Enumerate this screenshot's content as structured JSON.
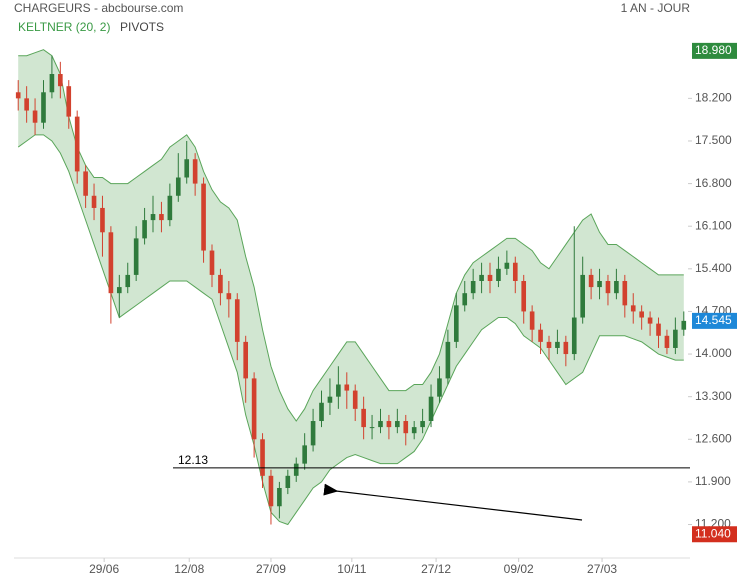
{
  "chart_data": {
    "type": "candlestick",
    "title": "CHARGEURS - abcbourse.com",
    "period": "1 AN - JOUR",
    "indicators": [
      "KELTNER (20, 2)",
      "PIVOTS"
    ],
    "up_color": "#2f7a3c",
    "down_color": "#d2412e",
    "band_color": "#5aa55a",
    "xlim": [
      -0.5,
      79.5
    ],
    "xticks": [
      {
        "value": 10.2,
        "label": "29/06"
      },
      {
        "value": 20.3,
        "label": "12/08"
      },
      {
        "value": 30.0,
        "label": "27/09"
      },
      {
        "value": 39.6,
        "label": "10/11"
      },
      {
        "value": 49.6,
        "label": "27/12"
      },
      {
        "value": 59.4,
        "label": "09/02"
      },
      {
        "value": 69.3,
        "label": "27/03"
      }
    ],
    "ylim": [
      10.65,
      19.52
    ],
    "yticks": [
      {
        "value": 11.2,
        "label": "11.200"
      },
      {
        "value": 11.9,
        "label": "11.900"
      },
      {
        "value": 12.6,
        "label": "12.600"
      },
      {
        "value": 13.3,
        "label": "13.300"
      },
      {
        "value": 14.0,
        "label": "14.000"
      },
      {
        "value": 14.7,
        "label": "14.700"
      },
      {
        "value": 15.4,
        "label": "15.400"
      },
      {
        "value": 16.1,
        "label": "16.100"
      },
      {
        "value": 16.8,
        "label": "16.800"
      },
      {
        "value": 17.5,
        "label": "17.500"
      },
      {
        "value": 18.2,
        "label": "18.200"
      }
    ],
    "open": [
      18.3,
      18.2,
      18.0,
      17.8,
      18.3,
      18.6,
      18.4,
      17.9,
      17.0,
      16.6,
      16.4,
      16.0,
      15.0,
      15.1,
      15.3,
      15.9,
      16.2,
      16.3,
      16.2,
      16.6,
      16.9,
      17.2,
      16.8,
      15.7,
      15.3,
      15.0,
      14.9,
      14.2,
      13.6,
      12.6,
      12.0,
      11.5,
      11.8,
      12.0,
      12.2,
      12.5,
      12.9,
      13.2,
      13.3,
      13.5,
      13.4,
      13.1,
      12.8,
      12.8,
      12.9,
      12.8,
      12.9,
      12.7,
      12.8,
      12.9,
      13.3,
      13.6,
      14.2,
      14.8,
      15.0,
      15.2,
      15.3,
      15.2,
      15.4,
      15.5,
      15.2,
      14.7,
      14.4,
      14.2,
      14.1,
      14.2,
      14.0,
      14.6,
      15.3,
      15.1,
      15.2,
      15.0,
      15.2,
      14.8,
      14.7,
      14.6,
      14.5,
      14.3,
      14.1,
      14.4
    ],
    "high": [
      18.5,
      18.4,
      18.2,
      18.5,
      18.9,
      18.8,
      18.5,
      18.0,
      17.1,
      16.8,
      16.6,
      16.1,
      15.3,
      15.5,
      16.1,
      16.4,
      16.6,
      16.5,
      16.8,
      17.3,
      17.5,
      17.3,
      16.9,
      15.8,
      15.4,
      15.2,
      15.0,
      14.3,
      13.7,
      12.7,
      12.1,
      11.9,
      12.1,
      12.3,
      12.7,
      13.1,
      13.4,
      13.6,
      13.8,
      13.7,
      13.5,
      13.3,
      13.0,
      13.1,
      13.0,
      13.1,
      13.0,
      12.9,
      13.1,
      13.5,
      13.8,
      14.4,
      15.0,
      15.2,
      15.4,
      15.5,
      15.5,
      15.6,
      15.7,
      15.6,
      15.3,
      14.8,
      14.5,
      14.3,
      14.4,
      14.3,
      16.1,
      15.6,
      15.4,
      15.4,
      15.3,
      15.4,
      15.3,
      15.0,
      14.8,
      14.7,
      14.6,
      14.4,
      14.6,
      14.7
    ],
    "low": [
      18.0,
      17.8,
      17.6,
      17.7,
      18.2,
      18.2,
      17.7,
      16.8,
      16.4,
      16.2,
      15.6,
      14.5,
      14.6,
      15.0,
      15.2,
      15.8,
      16.0,
      16.0,
      16.1,
      16.5,
      16.8,
      16.6,
      15.5,
      15.1,
      14.8,
      14.6,
      13.9,
      13.2,
      12.3,
      11.8,
      11.2,
      11.3,
      11.7,
      11.9,
      12.1,
      12.4,
      12.8,
      13.0,
      13.1,
      13.1,
      12.9,
      12.6,
      12.6,
      12.7,
      12.6,
      12.7,
      12.5,
      12.6,
      12.7,
      12.8,
      13.2,
      13.5,
      14.1,
      14.7,
      14.9,
      15.0,
      15.0,
      15.1,
      15.3,
      15.0,
      14.5,
      14.2,
      14.0,
      13.9,
      14.0,
      13.8,
      13.9,
      14.5,
      14.9,
      14.9,
      14.8,
      14.9,
      14.6,
      14.5,
      14.4,
      14.3,
      14.1,
      14.0,
      14.0,
      14.3
    ],
    "close": [
      18.2,
      18.0,
      17.8,
      18.3,
      18.6,
      18.4,
      17.9,
      17.0,
      16.6,
      16.4,
      16.0,
      15.0,
      15.1,
      15.3,
      15.9,
      16.2,
      16.3,
      16.2,
      16.6,
      16.9,
      17.2,
      16.8,
      15.7,
      15.3,
      15.0,
      14.9,
      14.2,
      13.6,
      12.6,
      12.0,
      11.5,
      11.8,
      12.0,
      12.2,
      12.5,
      12.9,
      13.2,
      13.3,
      13.5,
      13.4,
      13.1,
      12.8,
      12.8,
      12.9,
      12.8,
      12.9,
      12.7,
      12.8,
      12.9,
      13.3,
      13.6,
      14.2,
      14.8,
      15.0,
      15.2,
      15.3,
      15.2,
      15.4,
      15.5,
      15.2,
      14.7,
      14.4,
      14.2,
      14.1,
      14.2,
      14.0,
      14.6,
      15.3,
      15.1,
      15.2,
      15.0,
      15.2,
      14.8,
      14.7,
      14.6,
      14.5,
      14.3,
      14.1,
      14.4,
      14.545
    ],
    "keltner_upper": [
      18.9,
      18.9,
      18.95,
      19.0,
      18.9,
      18.6,
      17.9,
      17.4,
      17.1,
      16.9,
      16.9,
      16.8,
      16.8,
      16.8,
      16.9,
      17.0,
      17.1,
      17.2,
      17.4,
      17.5,
      17.6,
      17.4,
      17.0,
      16.7,
      16.5,
      16.4,
      16.2,
      15.6,
      15.1,
      14.4,
      13.8,
      13.4,
      13.1,
      12.9,
      13.1,
      13.4,
      13.6,
      13.8,
      14.0,
      14.2,
      14.2,
      14.0,
      13.8,
      13.6,
      13.4,
      13.4,
      13.4,
      13.5,
      13.5,
      13.7,
      14.0,
      14.5,
      15.0,
      15.3,
      15.5,
      15.6,
      15.7,
      15.8,
      15.9,
      15.9,
      15.8,
      15.7,
      15.5,
      15.4,
      15.6,
      15.8,
      16.0,
      16.2,
      16.3,
      16.0,
      15.8,
      15.8,
      15.7,
      15.6,
      15.5,
      15.4,
      15.3,
      15.3,
      15.3,
      15.3
    ],
    "keltner_lower": [
      17.4,
      17.5,
      17.6,
      17.6,
      17.5,
      17.3,
      17.0,
      16.6,
      16.2,
      15.8,
      15.4,
      15.0,
      14.6,
      14.7,
      14.8,
      14.9,
      15.0,
      15.1,
      15.2,
      15.2,
      15.2,
      15.1,
      15.0,
      14.9,
      14.5,
      14.1,
      13.7,
      13.0,
      12.5,
      11.9,
      11.4,
      11.25,
      11.2,
      11.4,
      11.6,
      11.8,
      11.9,
      12.1,
      12.2,
      12.3,
      12.35,
      12.3,
      12.25,
      12.2,
      12.2,
      12.2,
      12.3,
      12.4,
      12.6,
      12.9,
      13.2,
      13.5,
      13.8,
      14.0,
      14.2,
      14.4,
      14.5,
      14.6,
      14.6,
      14.5,
      14.3,
      14.2,
      14.1,
      13.9,
      13.7,
      13.5,
      13.6,
      13.7,
      14.0,
      14.3,
      14.3,
      14.3,
      14.3,
      14.25,
      14.2,
      14.1,
      14.0,
      13.95,
      13.9,
      13.9
    ],
    "pivot": {
      "value": 12.13,
      "label": "12.13"
    },
    "price_marks": [
      {
        "value": 18.98,
        "label": "18.980",
        "color": "#2e8b3e"
      },
      {
        "value": 14.545,
        "label": "14.545",
        "color": "#1e88d8"
      },
      {
        "value": 11.04,
        "label": "11.040",
        "color": "#d32f1e"
      }
    ]
  }
}
